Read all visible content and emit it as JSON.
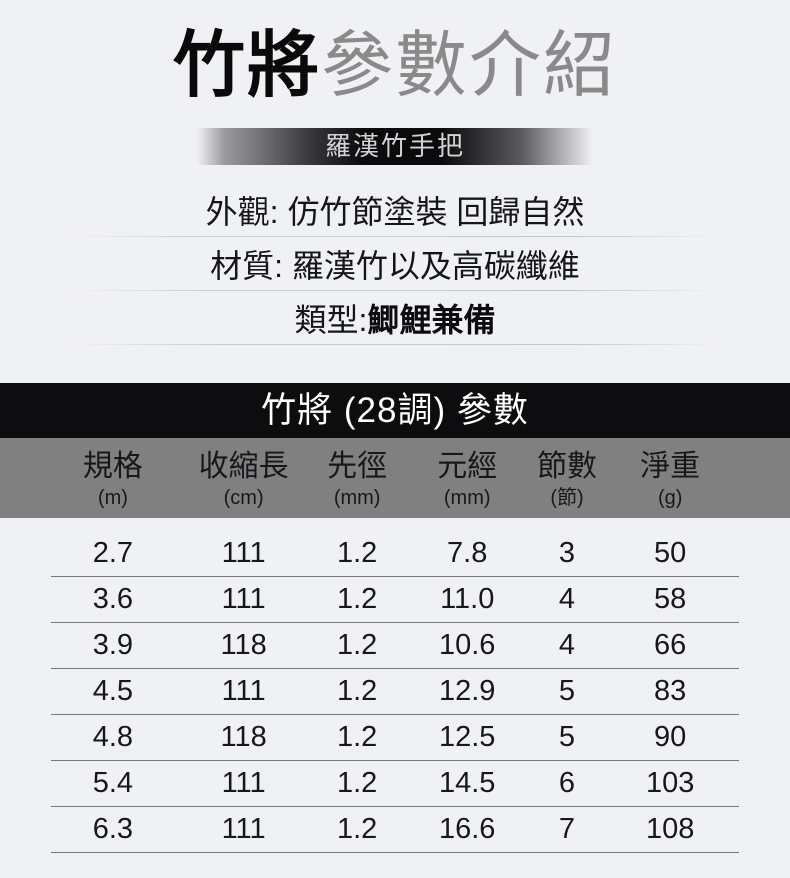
{
  "title": {
    "brand": "竹將",
    "rest": "參數介紹"
  },
  "banner": {
    "label": "羅漢竹手把"
  },
  "specs": [
    {
      "regular": "外觀: 仿竹節塗裝 回歸自然",
      "bold": ""
    },
    {
      "regular": "材質: 羅漢竹以及高碳纖維",
      "bold": ""
    },
    {
      "regular": "類型:",
      "bold": "鯽鯉兼備"
    }
  ],
  "table": {
    "title": "竹將 (28調) 參數",
    "columns": [
      {
        "name": "規格",
        "unit": "(m)"
      },
      {
        "name": "收縮長",
        "unit": "(cm)"
      },
      {
        "name": "先徑",
        "unit": "(mm)"
      },
      {
        "name": "元經",
        "unit": "(mm)"
      },
      {
        "name": "節數",
        "unit": "(節)"
      },
      {
        "name": "淨重",
        "unit": "(g)"
      }
    ],
    "rows": [
      [
        "2.7",
        "111",
        "1.2",
        "7.8",
        "3",
        "50"
      ],
      [
        "3.6",
        "111",
        "1.2",
        "11.0",
        "4",
        "58"
      ],
      [
        "3.9",
        "118",
        "1.2",
        "10.6",
        "4",
        "66"
      ],
      [
        "4.5",
        "111",
        "1.2",
        "12.9",
        "5",
        "83"
      ],
      [
        "4.8",
        "118",
        "1.2",
        "12.5",
        "5",
        "90"
      ],
      [
        "5.4",
        "111",
        "1.2",
        "14.5",
        "6",
        "103"
      ],
      [
        "6.3",
        "111",
        "1.2",
        "16.6",
        "7",
        "108"
      ]
    ]
  },
  "colors": {
    "background": "#f0f1f5",
    "brand_text": "#0a0a0a",
    "subtitle_gray": "#8a8a8a",
    "banner_text": "#d2d2d4",
    "banner_dark": "#0b0b0d",
    "table_title_bg": "#0d0d0f",
    "table_title_text": "#ffffff",
    "header_bg": "#808080",
    "row_line": "#76777b"
  }
}
